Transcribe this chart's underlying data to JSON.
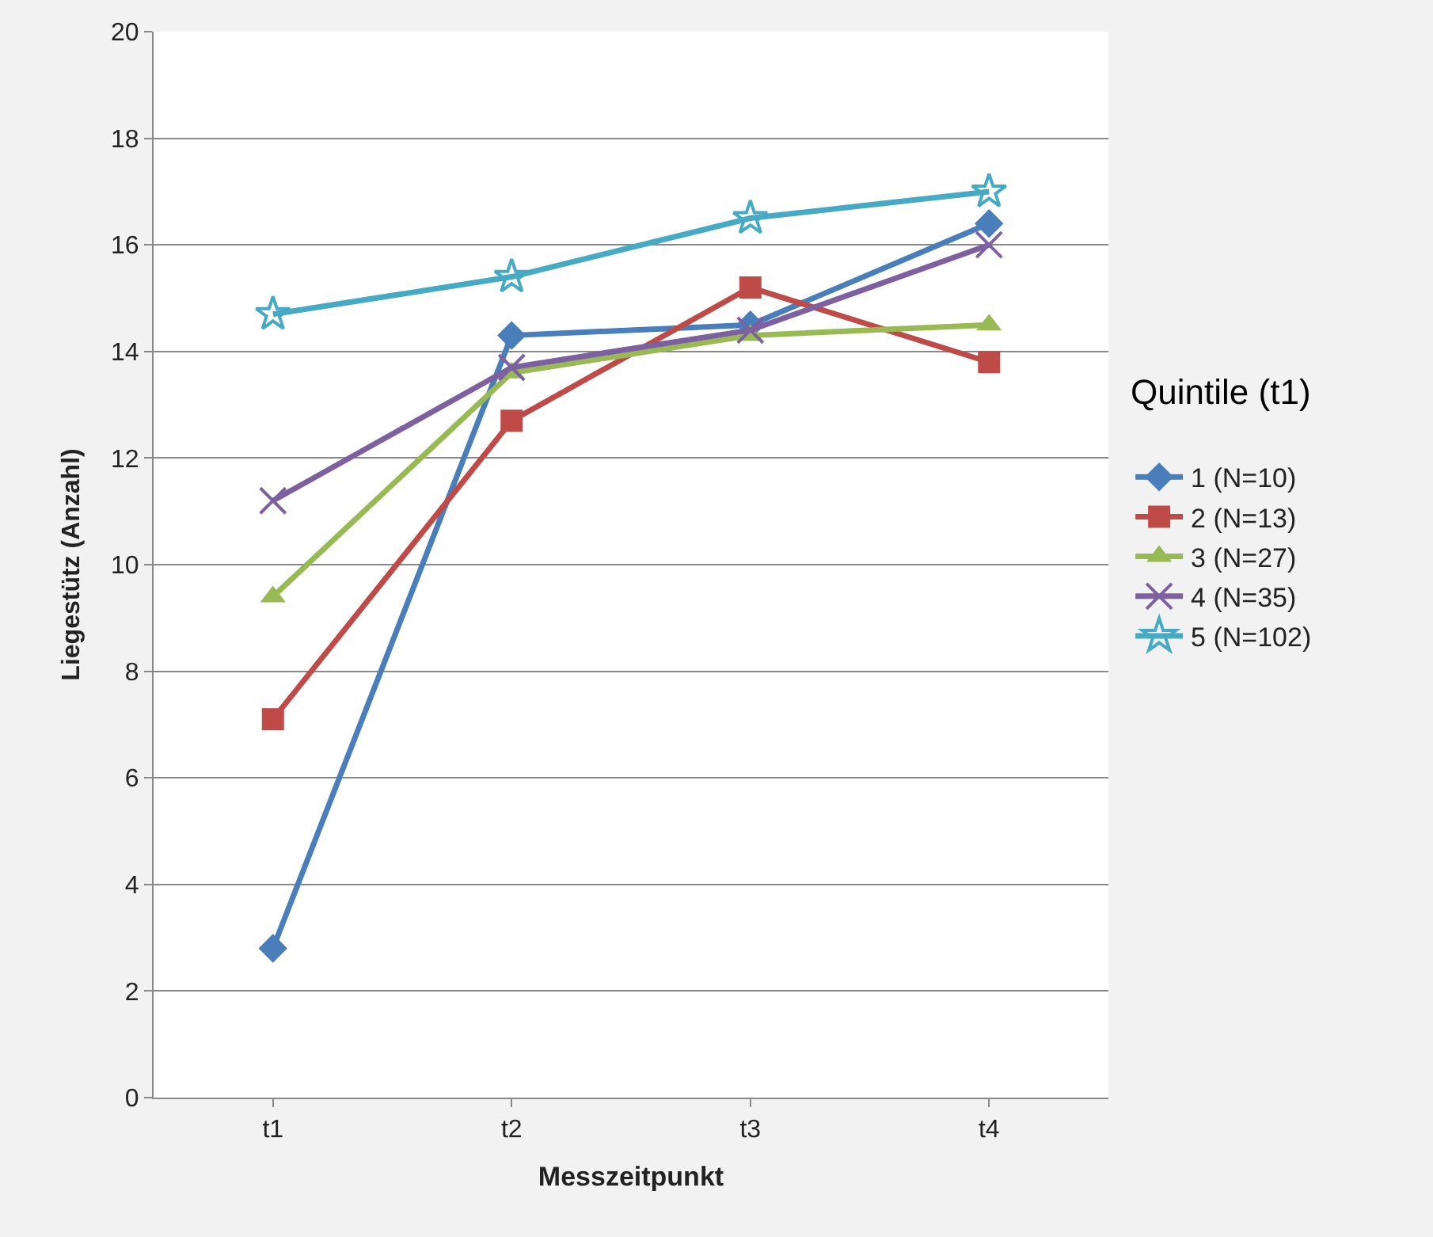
{
  "chart_data": {
    "type": "line",
    "xlabel": "Messzeitpunkt",
    "ylabel": "Liegestütz (Anzahl)",
    "legend_title": "Quintile (t1)",
    "categories": [
      "t1",
      "t2",
      "t3",
      "t4"
    ],
    "series": [
      {
        "name": "1 (N=10)",
        "color": "#4a7ebb",
        "marker": "diamond",
        "values": [
          2.8,
          14.3,
          14.5,
          16.4
        ]
      },
      {
        "name": "2 (N=13)",
        "color": "#be4b48",
        "marker": "square",
        "values": [
          7.1,
          12.7,
          15.2,
          13.8
        ]
      },
      {
        "name": "3 (N=27)",
        "color": "#98b954",
        "marker": "triangle",
        "values": [
          9.4,
          13.6,
          14.3,
          14.5
        ]
      },
      {
        "name": "4 (N=35)",
        "color": "#7d60a0",
        "marker": "cross",
        "values": [
          11.2,
          13.7,
          14.4,
          16.0
        ]
      },
      {
        "name": "5 (N=102)",
        "color": "#46aac5",
        "marker": "star",
        "values": [
          14.7,
          15.4,
          16.5,
          17.0
        ]
      }
    ],
    "ylim": [
      0,
      20
    ],
    "yticks": [
      0,
      2,
      4,
      6,
      8,
      10,
      12,
      14,
      16,
      18,
      20
    ],
    "grid": "y",
    "legend": "right",
    "line_style": "solid"
  }
}
